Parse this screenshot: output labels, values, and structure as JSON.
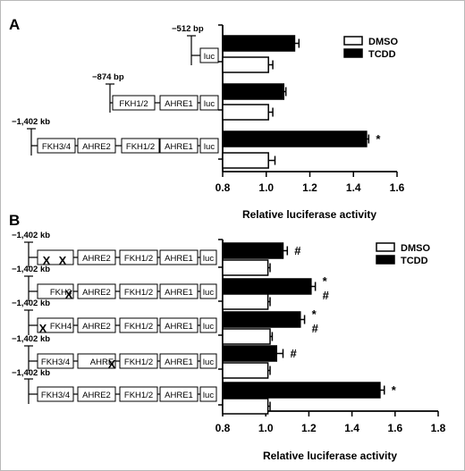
{
  "panels": [
    {
      "letter": "A",
      "constructs": [
        {
          "length_label": "−512  bp",
          "elements": [
            "luc"
          ],
          "crossed": []
        },
        {
          "length_label": "−874  bp",
          "elements": [
            "FKH1/2",
            "AHRE1",
            "luc"
          ],
          "crossed": []
        },
        {
          "length_label": "−1,402 kb",
          "elements": [
            "FKH3/4",
            "AHRE2",
            "FKH1/2",
            "AHRE1",
            "luc"
          ],
          "crossed": []
        }
      ]
    },
    {
      "letter": "B",
      "constructs": [
        {
          "length_label": "−1,402 kb",
          "elements": [
            "",
            "AHRE2",
            "FKH1/2",
            "AHRE1",
            "luc"
          ],
          "crossed": [
            0
          ]
        },
        {
          "length_label": "−1,402 kb",
          "elements": [
            "FKH3",
            "AHRE2",
            "FKH1/2",
            "AHRE1",
            "luc"
          ],
          "crossed": [
            0
          ]
        },
        {
          "length_label": "−1,402 kb",
          "elements": [
            "FKH4",
            "AHRE2",
            "FKH1/2",
            "AHRE1",
            "luc"
          ],
          "crossed": [
            0
          ]
        },
        {
          "length_label": "−1,402 kb",
          "elements": [
            "FKH3/4",
            "AHRE",
            "FKH1/2",
            "AHRE1",
            "luc"
          ],
          "crossed": [
            1
          ]
        },
        {
          "length_label": "−1,402 kb",
          "elements": [
            "FKH3/4",
            "AHRE2",
            "FKH1/2",
            "AHRE1",
            "luc"
          ],
          "crossed": []
        }
      ]
    }
  ],
  "chart_data": [
    {
      "type": "bar",
      "orientation": "horizontal",
      "xlabel": "Relative luciferase activity",
      "xlim": [
        0.8,
        1.6
      ],
      "xticks": [
        "0.8",
        "1.0",
        "1.2",
        "1.4",
        "1.6"
      ],
      "legend_position": "top-right",
      "series": [
        {
          "name": "TCDD",
          "color": "#000000",
          "values": [
            1.13,
            1.08,
            1.46
          ],
          "errors": [
            0.02,
            0.01,
            0.01
          ]
        },
        {
          "name": "DMSO",
          "color": "#ffffff",
          "values": [
            1.01,
            1.01,
            1.01
          ],
          "errors": [
            0.02,
            0.02,
            0.03
          ]
        }
      ],
      "annotations": [
        "",
        "",
        "*"
      ]
    },
    {
      "type": "bar",
      "orientation": "horizontal",
      "xlabel": "Relative luciferase activity",
      "xlim": [
        0.8,
        1.8
      ],
      "xticks": [
        "0.8",
        "1.0",
        "1.2",
        "1.4",
        "1.6",
        "1.8"
      ],
      "legend_position": "top-right",
      "series": [
        {
          "name": "TCDD",
          "color": "#000000",
          "values": [
            1.08,
            1.21,
            1.16,
            1.05,
            1.53
          ],
          "errors": [
            0.02,
            0.02,
            0.02,
            0.03,
            0.02
          ]
        },
        {
          "name": "DMSO",
          "color": "#ffffff",
          "values": [
            1.01,
            1.01,
            1.02,
            1.01,
            1.01
          ],
          "errors": [
            0.01,
            0.01,
            0.01,
            0.01,
            0.01
          ]
        }
      ],
      "annotations": [
        "#",
        "*\n#",
        "*\n#",
        "#",
        "*"
      ]
    }
  ]
}
